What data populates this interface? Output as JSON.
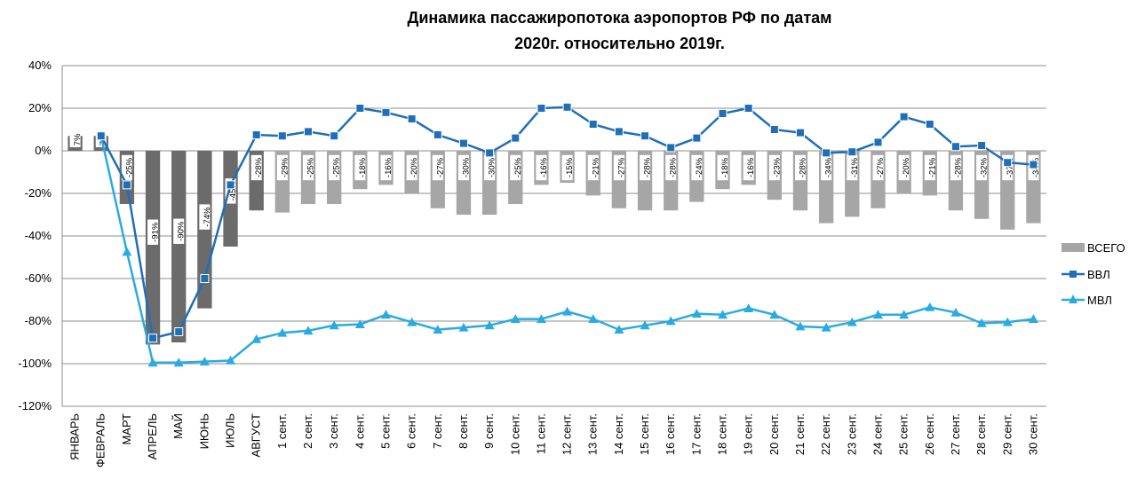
{
  "chart_data": {
    "type": "bar",
    "title": "Динамика пассажиропотока аэропортов РФ по датам",
    "subtitle": "2020г. относительно 2019г.",
    "ylim": [
      -120,
      40
    ],
    "yticks": [
      "40%",
      "20%",
      "0%",
      "-20%",
      "-40%",
      "-60%",
      "-80%",
      "-100%",
      "-120%"
    ],
    "grid": true,
    "legend_position": "right",
    "categories": [
      "ЯНВАРЬ",
      "ФЕВРАЛЬ",
      "МАРТ",
      "АПРЕЛЬ",
      "МАЙ",
      "ИЮНЬ",
      "ИЮЛЬ",
      "АВГУСТ",
      "1 сент.",
      "2 сент.",
      "3 сент.",
      "4 сент.",
      "5 сент.",
      "6 сент.",
      "7 сент.",
      "8 сент.",
      "9 сент.",
      "10 сент.",
      "11 сент.",
      "12 сент.",
      "13 сент.",
      "14 сент.",
      "15 сент.",
      "16 сент.",
      "17 сент.",
      "18 сент.",
      "19 сент.",
      "20 сент.",
      "21 сент.",
      "22 сент.",
      "23 сент.",
      "24 сент.",
      "25 сент.",
      "26 сент.",
      "27 сент.",
      "28 сент.",
      "29 сент.",
      "30 сент."
    ],
    "series": [
      {
        "name": "ВСЕГО",
        "kind": "bar",
        "color_dark": "#6b6b6b",
        "color_light": "#a6a6a6",
        "values": [
          7,
          7,
          -25,
          -91,
          -90,
          -74,
          -45,
          -28,
          -29,
          -25,
          -25,
          -18,
          -16,
          -20,
          -27,
          -30,
          -30,
          -25,
          -16,
          -15,
          -21,
          -27,
          -28,
          -28,
          -24,
          -18,
          -16,
          -23,
          -28,
          -34,
          -31,
          -27,
          -20,
          -21,
          -28,
          -32,
          -37,
          -34
        ],
        "labels": [
          "7%",
          "7%",
          "-25%",
          "-91%",
          "-90%",
          "-74%",
          "-45%",
          "-28%",
          "-29%",
          "-25%",
          "-25%",
          "-18%",
          "-16%",
          "-20%",
          "-27%",
          "-30%",
          "-30%",
          "-25%",
          "-16%",
          "-15%",
          "-21%",
          "-27%",
          "-28%",
          "-28%",
          "-24%",
          "-18%",
          "-16%",
          "-23%",
          "-28%",
          "-34%",
          "-31%",
          "-27%",
          "-20%",
          "-21%",
          "-28%",
          "-32%",
          "-37%",
          "-34%"
        ]
      },
      {
        "name": "ВВЛ",
        "kind": "line",
        "marker": "square",
        "color": "#1f6fb8",
        "values": [
          null,
          7,
          -16,
          -88,
          -85,
          -60,
          -16,
          7.5,
          7,
          9,
          7,
          20,
          18,
          15,
          7.5,
          3.5,
          -1,
          6,
          20,
          20.5,
          12.5,
          9,
          7,
          1.5,
          6,
          17.5,
          20,
          10,
          8.5,
          -1,
          -0.5,
          4,
          16,
          12.5,
          2,
          2.5,
          -5.5,
          -6.5
        ]
      },
      {
        "name": "МВЛ",
        "kind": "line",
        "marker": "triangle",
        "color": "#29abe2",
        "values": [
          null,
          7,
          -47.5,
          -99.5,
          -99.5,
          -99,
          -98.5,
          -88.5,
          -85.5,
          -84.5,
          -82,
          -81.5,
          -77,
          -80.5,
          -84,
          -83,
          -82,
          -79,
          -79,
          -75.5,
          -79,
          -84,
          -82,
          -80,
          -76.5,
          -77,
          -74,
          -77,
          -82.5,
          -83,
          -80.5,
          -77,
          -77,
          -73.5,
          -76,
          -81,
          -80.5,
          -79
        ]
      }
    ]
  }
}
